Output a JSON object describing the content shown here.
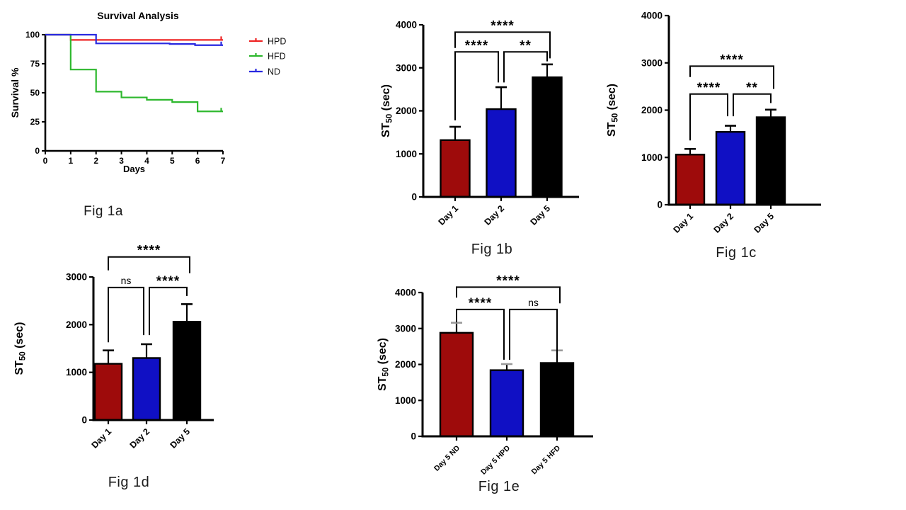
{
  "page": {
    "background": "#ffffff"
  },
  "captions": {
    "fig1a": "Fig 1a",
    "fig1b": "Fig 1b",
    "fig1c": "Fig 1c",
    "fig1d": "Fig 1d",
    "fig1e": "Fig 1e"
  },
  "chart_data": [
    {
      "id": "fig1a",
      "type": "line",
      "line_style": "step",
      "title": "Survival Analysis",
      "xlabel": "Days",
      "ylabel": "Survival %",
      "xlim": [
        0,
        7
      ],
      "ylim": [
        0,
        100
      ],
      "xticks": [
        0,
        1,
        2,
        3,
        4,
        5,
        6,
        7
      ],
      "yticks": [
        0,
        25,
        50,
        75,
        100
      ],
      "legend_position": "right",
      "series": [
        {
          "name": "HPD",
          "color": "#ee2424",
          "points": [
            [
              0,
              100
            ],
            [
              1,
              100
            ],
            [
              1,
              95.5
            ],
            [
              7,
              95.5
            ]
          ],
          "censor_ticks": [
            [
              6.93,
              95.5
            ]
          ]
        },
        {
          "name": "HFD",
          "color": "#2eb82e",
          "points": [
            [
              0,
              100
            ],
            [
              1,
              100
            ],
            [
              1,
              70
            ],
            [
              2,
              70
            ],
            [
              2,
              51
            ],
            [
              3,
              51
            ],
            [
              3,
              46
            ],
            [
              4,
              46
            ],
            [
              4,
              44
            ],
            [
              5,
              44
            ],
            [
              5,
              42
            ],
            [
              6,
              42
            ],
            [
              6,
              34
            ],
            [
              7,
              34
            ]
          ],
          "censor_ticks": [
            [
              6.93,
              34
            ]
          ]
        },
        {
          "name": "ND",
          "color": "#2929e0",
          "points": [
            [
              0,
              100
            ],
            [
              2,
              100
            ],
            [
              2,
              92.5
            ],
            [
              4.9,
              92.5
            ],
            [
              4.9,
              92
            ],
            [
              5.9,
              92
            ],
            [
              5.9,
              91
            ],
            [
              7,
              91
            ]
          ],
          "censor_ticks": [
            [
              6.93,
              91
            ]
          ]
        }
      ],
      "legend_order": [
        "HPD",
        "HFD",
        "ND"
      ]
    },
    {
      "id": "fig1b",
      "type": "bar",
      "ylabel": "ST50 (sec)",
      "ylabel_parts": [
        {
          "t": "ST"
        },
        {
          "t": "50",
          "sub": true
        },
        {
          "t": " (sec)"
        }
      ],
      "categories": [
        "Day 1",
        "Day 2",
        "Day 5"
      ],
      "values": [
        1320,
        2040,
        2780
      ],
      "errors_up": [
        310,
        510,
        300
      ],
      "bar_colors": [
        "#9e0b0b",
        "#1010c4",
        "#000000"
      ],
      "ylim": [
        0,
        4000
      ],
      "yticks": [
        0,
        1000,
        2000,
        3000,
        4000
      ],
      "significance": [
        {
          "from": 0,
          "to": 1,
          "label": "****",
          "y": 3370,
          "leg_from": 1780,
          "leg_to": 2660,
          "to_dx": -4
        },
        {
          "from": 1,
          "to": 2,
          "label": "**",
          "y": 3370,
          "leg_from": 2660,
          "leg_to": 3150,
          "from_dx": 4
        },
        {
          "from": 0,
          "to": 2,
          "label": "****",
          "y": 3830,
          "leg_from": 3460,
          "leg_to": 3220,
          "to_dx": 4
        }
      ]
    },
    {
      "id": "fig1c",
      "type": "bar",
      "ylabel": "ST50 (sec)",
      "ylabel_parts": [
        {
          "t": "ST"
        },
        {
          "t": "50",
          "sub": true
        },
        {
          "t": " (sec)"
        }
      ],
      "categories": [
        "Day 1",
        "Day 2",
        "Day 5"
      ],
      "values": [
        1060,
        1540,
        1850
      ],
      "errors_up": [
        120,
        130,
        160
      ],
      "bar_colors": [
        "#9e0b0b",
        "#1010c4",
        "#000000"
      ],
      "ylim": [
        0,
        4000
      ],
      "yticks": [
        0,
        1000,
        2000,
        3000,
        4000
      ],
      "significance": [
        {
          "from": 0,
          "to": 1,
          "label": "****",
          "y": 2340,
          "leg_from": 1360,
          "leg_to": 1870,
          "to_dx": -4
        },
        {
          "from": 1,
          "to": 2,
          "label": "**",
          "y": 2340,
          "leg_from": 1870,
          "leg_to": 2150,
          "from_dx": 4
        },
        {
          "from": 0,
          "to": 2,
          "label": "****",
          "y": 2930,
          "leg_from": 2700,
          "leg_to": 2450,
          "to_dx": 4
        }
      ]
    },
    {
      "id": "fig1d",
      "type": "bar",
      "ylabel": "ST50 (sec)",
      "ylabel_parts": [
        {
          "t": "ST"
        },
        {
          "t": "50",
          "sub": true
        },
        {
          "t": " (sec)"
        }
      ],
      "categories": [
        "Day 1",
        "Day 2",
        "Day 5"
      ],
      "values": [
        1180,
        1300,
        2060
      ],
      "errors_up": [
        280,
        290,
        370
      ],
      "bar_colors": [
        "#9e0b0b",
        "#1010c4",
        "#000000"
      ],
      "ylim": [
        0,
        3000
      ],
      "yticks": [
        0,
        1000,
        2000,
        3000
      ],
      "significance": [
        {
          "from": 0,
          "to": 1,
          "label": "ns",
          "y": 2780,
          "leg_from": 1630,
          "leg_to": 1780,
          "to_dx": -4
        },
        {
          "from": 1,
          "to": 2,
          "label": "****",
          "y": 2780,
          "leg_from": 1780,
          "leg_to": 2600,
          "from_dx": 4
        },
        {
          "from": 0,
          "to": 2,
          "label": "****",
          "y": 3420,
          "leg_from": 3140,
          "leg_to": 3080,
          "to_dx": 4
        }
      ]
    },
    {
      "id": "fig1e",
      "type": "bar",
      "ylabel": "ST50 (sec)",
      "ylabel_parts": [
        {
          "t": "ST"
        },
        {
          "t": "50",
          "sub": true
        },
        {
          "t": " (sec)"
        }
      ],
      "categories": [
        "Day 5 ND",
        "Day 5 HPD",
        "Day 5 HFD"
      ],
      "values": [
        2880,
        1840,
        2040
      ],
      "errors_up": [
        280,
        170,
        350
      ],
      "bar_colors": [
        "#9e0b0b",
        "#1010c4",
        "#000000"
      ],
      "error_cap_color": "#9a9a9a",
      "ylim": [
        0,
        4000
      ],
      "yticks": [
        0,
        1000,
        2000,
        3000,
        4000
      ],
      "significance": [
        {
          "from": 0,
          "to": 1,
          "label": "****",
          "y": 3530,
          "leg_from": 3170,
          "leg_to": 2130,
          "to_dx": -4
        },
        {
          "from": 1,
          "to": 2,
          "label": "ns",
          "y": 3530,
          "leg_from": 2130,
          "leg_to": 2340,
          "from_dx": 4
        },
        {
          "from": 0,
          "to": 2,
          "label": "****",
          "y": 4150,
          "leg_from": 3860,
          "leg_to": 3700,
          "to_dx": 4
        }
      ]
    }
  ]
}
